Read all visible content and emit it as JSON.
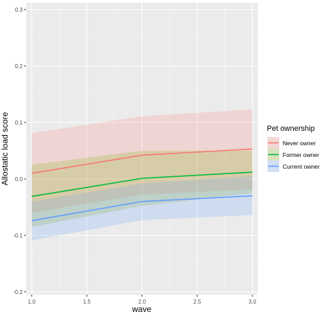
{
  "chart_data": {
    "type": "line",
    "title": "",
    "xlabel": "wave",
    "ylabel": "Allostatic load score",
    "xlim": [
      0.95,
      3.05
    ],
    "ylim": [
      -0.205,
      0.312
    ],
    "x_ticks": [
      1.0,
      1.5,
      2.0,
      2.5,
      3.0
    ],
    "x_tick_labels": [
      "1.0",
      "1.5",
      "2.0",
      "2.5",
      "3.0"
    ],
    "y_ticks": [
      -0.2,
      -0.1,
      0.0,
      0.1,
      0.2,
      0.3
    ],
    "y_tick_labels": [
      "-0.2",
      "-0.1",
      "0.0",
      "0.1",
      "0.2",
      "0.3"
    ],
    "grid": true,
    "legend": {
      "title": "Pet ownership",
      "position": "right"
    },
    "x": [
      1,
      2,
      3
    ],
    "series": [
      {
        "name": "Never owner",
        "color": "#F8766D",
        "fill": "#F8766D",
        "values": [
          0.01,
          0.042,
          0.053
        ],
        "lower": [
          -0.06,
          -0.028,
          -0.018
        ],
        "upper": [
          0.081,
          0.111,
          0.123
        ]
      },
      {
        "name": "Former owner",
        "color": "#00BA38",
        "fill": "#7CAE00",
        "values": [
          -0.031,
          0.001,
          0.012
        ],
        "lower": [
          -0.085,
          -0.048,
          -0.025
        ],
        "upper": [
          0.025,
          0.05,
          0.05
        ]
      },
      {
        "name": "Current owner",
        "color": "#619CFF",
        "fill": "#619CFF",
        "values": [
          -0.074,
          -0.04,
          -0.03
        ],
        "lower": [
          -0.109,
          -0.073,
          -0.064
        ],
        "upper": [
          -0.04,
          -0.008,
          0.005
        ]
      }
    ]
  }
}
